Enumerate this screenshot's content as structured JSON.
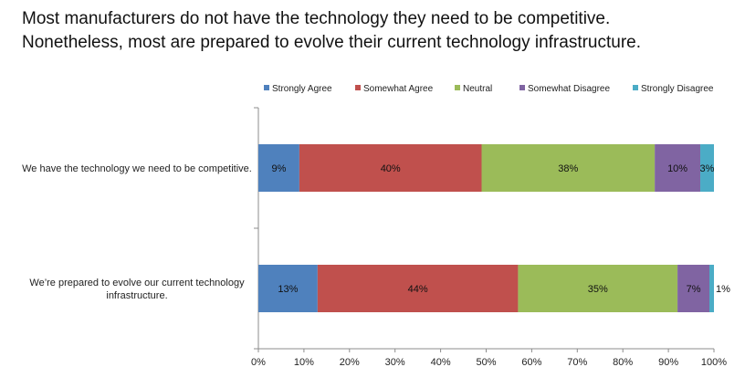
{
  "headline": {
    "line1": "Most manufacturers do not have the technology they need to be competitive.",
    "line2": "Nonetheless, most are prepared to evolve their current technology infrastructure."
  },
  "chart_data": {
    "type": "bar",
    "orientation": "horizontal",
    "stacked": true,
    "legend_position": "top",
    "grid": false,
    "xlim": [
      0,
      100
    ],
    "x_ticks": [
      "0%",
      "10%",
      "20%",
      "30%",
      "40%",
      "50%",
      "60%",
      "70%",
      "80%",
      "90%",
      "100%"
    ],
    "categories": [
      [
        "We have the technology we need to be competitive."
      ],
      [
        "We’re prepared to evolve our current technology",
        "infrastructure."
      ]
    ],
    "series": [
      {
        "name": "Strongly Agree",
        "color": "#4f81bd",
        "values": [
          9,
          13
        ],
        "labels": [
          "9%",
          "13%"
        ]
      },
      {
        "name": "Somewhat Agree",
        "color": "#c0504d",
        "values": [
          40,
          44
        ],
        "labels": [
          "40%",
          "44%"
        ]
      },
      {
        "name": "Neutral",
        "color": "#9bbb59",
        "values": [
          38,
          35
        ],
        "labels": [
          "38%",
          "35%"
        ]
      },
      {
        "name": "Somewhat Disagree",
        "color": "#8064a2",
        "values": [
          10,
          7
        ],
        "labels": [
          "10%",
          "7%"
        ]
      },
      {
        "name": "Strongly Disagree",
        "color": "#4bacc6",
        "values": [
          3,
          1
        ],
        "labels": [
          "3%",
          "1%"
        ]
      }
    ]
  }
}
